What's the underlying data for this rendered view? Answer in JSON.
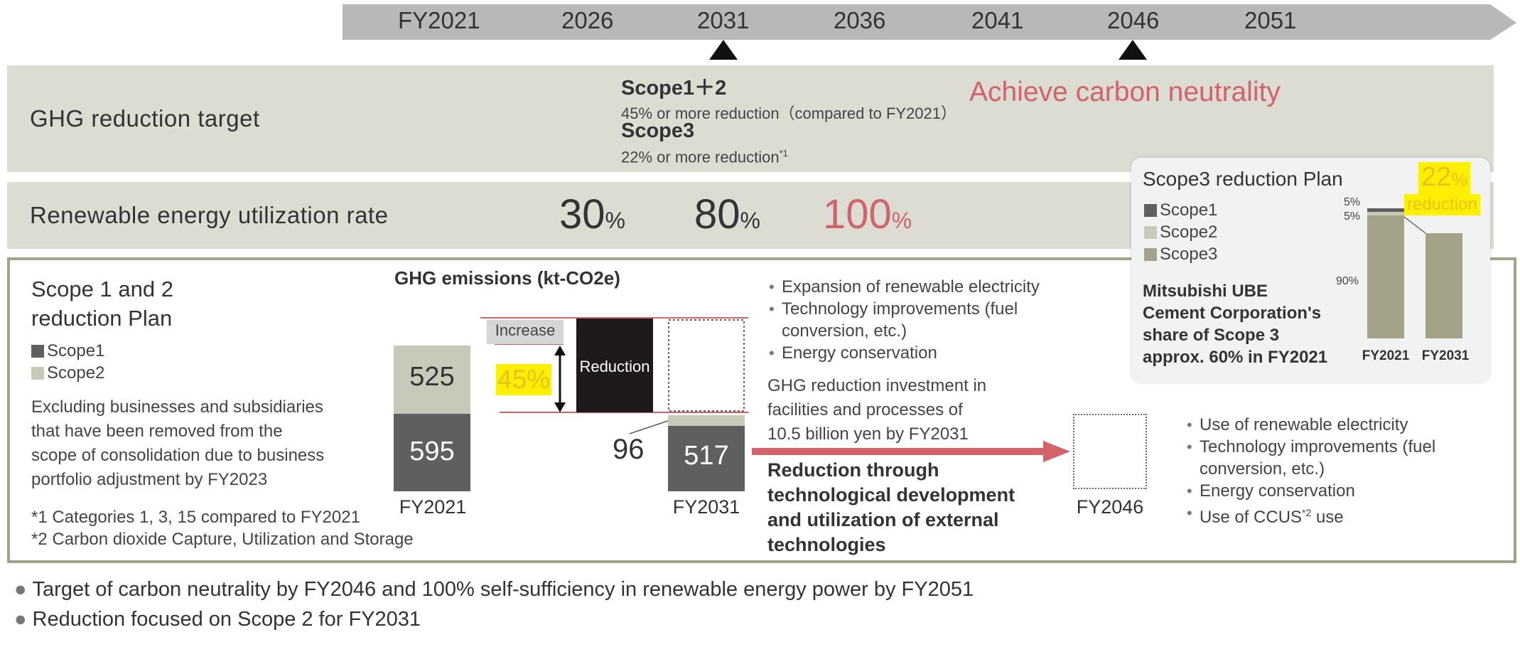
{
  "timeline": {
    "years": [
      "FY2021",
      "2026",
      "2031",
      "2036",
      "2041",
      "2046",
      "2051"
    ]
  },
  "ghg_target": {
    "label": "GHG reduction target",
    "scope12_title": "Scope1＋2",
    "scope12_text": "45% or more reduction（compared to FY2021）",
    "scope3_title": "Scope3",
    "scope3_text": "22% or more reduction",
    "scope3_note": "*1",
    "neutrality": "Achieve carbon neutrality"
  },
  "renewable": {
    "label": "Renewable energy utilization rate",
    "values": [
      {
        "num": "30",
        "unit": "%"
      },
      {
        "num": "80",
        "unit": "%"
      },
      {
        "num": "100",
        "unit": "%"
      }
    ]
  },
  "scope12_plan": {
    "title_line1": "Scope 1 and 2",
    "title_line2": "reduction Plan",
    "legend": [
      "Scope1",
      "Scope2"
    ],
    "exclusion_note": [
      "Excluding businesses and subsidiaries",
      "that have been removed from the",
      "scope of consolidation due to business",
      "portfolio adjustment by FY2023"
    ],
    "footnote1": "*1 Categories 1, 3, 15 compared to FY2021",
    "footnote2": "*2 Carbon dioxide Capture, Utilization and Storage"
  },
  "chart": {
    "title": "GHG emissions (kt-CO2e)",
    "increase_label": "Increase",
    "reduction_label": "Reduction",
    "pct_label": "45%",
    "fy2021_label": "FY2021",
    "fy2031_label": "FY2031",
    "fy2046_label": "FY2046",
    "diff_label": "96"
  },
  "chart_data": {
    "type": "bar",
    "categories": [
      "FY2021",
      "FY2031",
      "FY2046"
    ],
    "series": [
      {
        "name": "Scope1",
        "values": [
          595,
          517,
          null
        ]
      },
      {
        "name": "Scope2",
        "values": [
          525,
          null,
          null
        ]
      }
    ],
    "annotations": {
      "increase": 96,
      "reduction_pct": "45%"
    }
  },
  "measures_2031": [
    "Expansion of renewable electricity",
    "Technology improvements (fuel",
    "conversion, etc.)",
    "Energy conservation"
  ],
  "investment": [
    "GHG reduction investment in",
    "facilities and processes of",
    "10.5 billion yen by FY2031"
  ],
  "tech_text": [
    "Reduction through",
    "technological development",
    "and utilization of external",
    "technologies"
  ],
  "measures_2046": {
    "items": [
      "Use of renewable electricity",
      "Technology improvements (fuel",
      "conversion, etc.)",
      "Energy conservation"
    ],
    "ccus_prefix": "Use of CCUS",
    "ccus_sup": "*2",
    "ccus_suffix": " use"
  },
  "scope3_panel": {
    "title": "Scope3 reduction Plan",
    "legend": [
      "Scope1",
      "Scope2",
      "Scope3"
    ],
    "pct_num": "22",
    "pct_unit": "%",
    "reduction_word": "reduction",
    "label_5a": "5%",
    "label_5b": "5%",
    "label_90": "90%",
    "share_text": [
      "Mitsubishi UBE",
      "Cement Corporation's",
      "share of Scope 3",
      "approx. 60% in FY2021"
    ],
    "fy2021": "FY2021",
    "fy2031": "FY2031"
  },
  "scope3_chart": {
    "type": "bar",
    "categories": [
      "FY2021",
      "FY2031"
    ],
    "series": [
      {
        "name": "Scope1",
        "values": [
          5,
          null
        ]
      },
      {
        "name": "Scope2",
        "values": [
          5,
          null
        ]
      },
      {
        "name": "Scope3",
        "values": [
          90,
          78
        ]
      }
    ]
  },
  "summary": [
    "Target of carbon neutrality by FY2046 and 100% self-sufficiency in renewable energy power by FY2051",
    "Reduction focused on Scope 2 for FY2031"
  ],
  "colors": {
    "band": "#dcdcd3",
    "scope1": "#5f5f5f",
    "scope2": "#c9c9b9",
    "scope3": "#a3a38a",
    "accent_red": "#d2636b",
    "highlight": "#fff000",
    "pct_yellow": "#e8c020"
  }
}
